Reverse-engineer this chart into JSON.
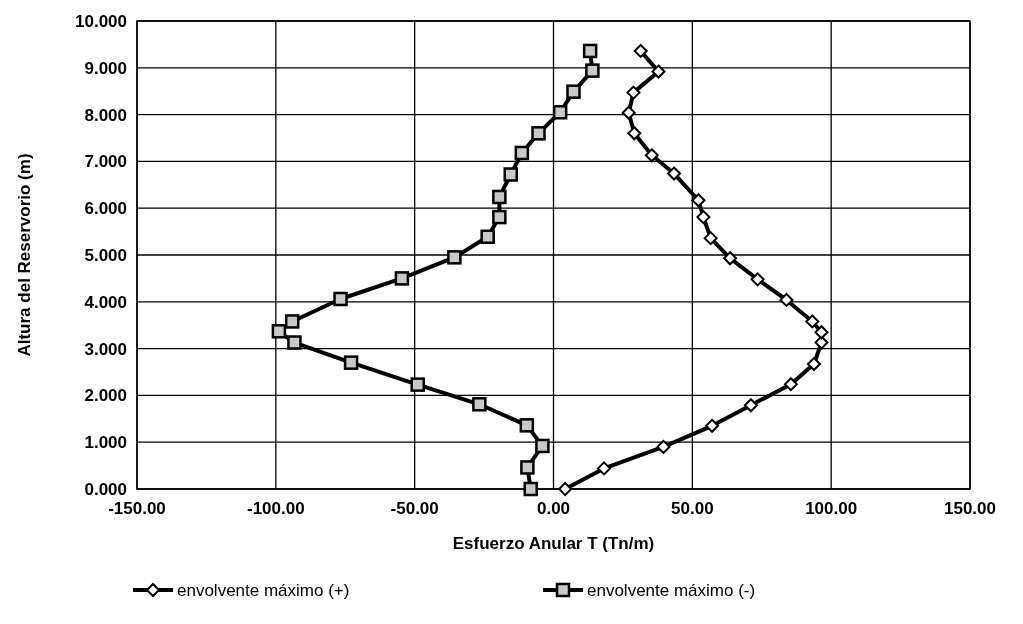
{
  "chart_data": {
    "type": "line",
    "xlabel": "Esfuerzo Anular T (Tn/m)",
    "ylabel": "Altura del Reservorio (m)",
    "xlim": [
      -150,
      150
    ],
    "xticks": [
      {
        "value": -150,
        "label": "-150.00"
      },
      {
        "value": -100,
        "label": "-100.00"
      },
      {
        "value": -50,
        "label": "-50.00"
      },
      {
        "value": 0,
        "label": "0.00"
      },
      {
        "value": 50,
        "label": "50.00"
      },
      {
        "value": 100,
        "label": "100.00"
      },
      {
        "value": 150,
        "label": "150.00"
      }
    ],
    "ylim": [
      0,
      10
    ],
    "yticks": [
      {
        "value": 0,
        "label": "0.000"
      },
      {
        "value": 1,
        "label": "1.000"
      },
      {
        "value": 2,
        "label": "2.000"
      },
      {
        "value": 3,
        "label": "3.000"
      },
      {
        "value": 4,
        "label": "4.000"
      },
      {
        "value": 5,
        "label": "5.000"
      },
      {
        "value": 6,
        "label": "6.000"
      },
      {
        "value": 7,
        "label": "7.000"
      },
      {
        "value": 8,
        "label": "8.000"
      },
      {
        "value": 9,
        "label": "9.000"
      },
      {
        "value": 10,
        "label": "10.000"
      }
    ],
    "grid": true,
    "legend": "bottom",
    "line_style": "solid",
    "series": [
      {
        "name": "envolvente máximo (+)",
        "color": "#000000",
        "marker": "diamond",
        "x": [
          4.2,
          18.2,
          39.6,
          57.1,
          71.1,
          85.5,
          93.8,
          96.5,
          96.5,
          93.2,
          83.9,
          73.5,
          63.6,
          56.6,
          54.0,
          52.2,
          43.4,
          35.4,
          29.1,
          27.1,
          28.8,
          37.8,
          31.4
        ],
        "values": [
          0.0,
          0.44,
          0.9,
          1.35,
          1.79,
          2.24,
          2.67,
          3.13,
          3.35,
          3.58,
          4.04,
          4.48,
          4.93,
          5.36,
          5.81,
          6.17,
          6.74,
          7.13,
          7.6,
          8.04,
          8.47,
          8.92,
          9.36
        ]
      },
      {
        "name": "envolvente máximo (-)",
        "color": "#000000",
        "marker": "square",
        "x": [
          -8.2,
          -9.4,
          -4.0,
          -9.6,
          -26.7,
          -48.9,
          -72.9,
          -93.3,
          -98.9,
          -94.1,
          -76.7,
          -54.6,
          -35.7,
          -23.7,
          -19.5,
          -19.5,
          -15.4,
          -11.4,
          -5.4,
          2.4,
          7.2,
          14.0,
          13.2
        ],
        "values": [
          0.0,
          0.46,
          0.92,
          1.36,
          1.81,
          2.23,
          2.7,
          3.13,
          3.37,
          3.58,
          4.06,
          4.5,
          4.95,
          5.39,
          5.81,
          6.24,
          6.72,
          7.18,
          7.6,
          8.05,
          8.49,
          8.94,
          9.36
        ]
      }
    ]
  }
}
